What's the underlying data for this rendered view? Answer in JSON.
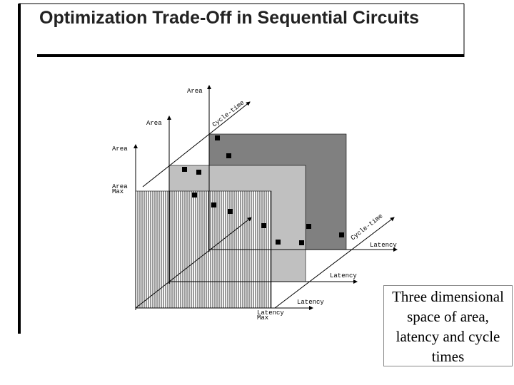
{
  "title": "Optimization Trade-Off in Sequential Circuits",
  "diagram": {
    "labels": [
      "Area",
      "Area",
      "Area",
      "Area",
      "Max",
      "Cycle-time",
      "Cycle-time",
      "Latency",
      "Latency",
      "Latency",
      "Latency",
      "Max"
    ]
  },
  "caption": "Three dimensional space of area, latency and cycle times"
}
